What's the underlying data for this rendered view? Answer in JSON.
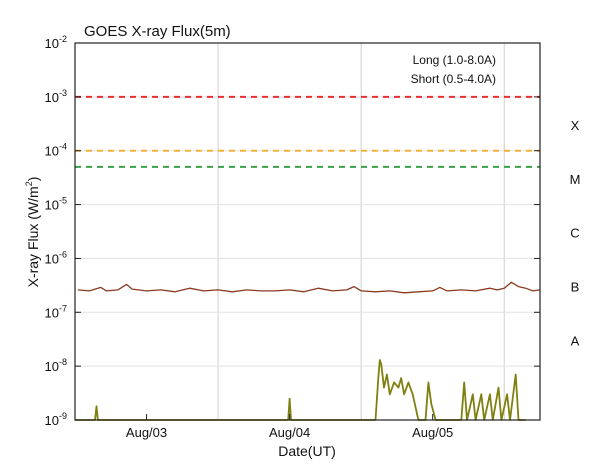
{
  "chart_data": {
    "type": "line",
    "title": "GOES X-ray Flux(5m)",
    "ylabel": "X-ray Flux (W/m",
    "ylabel_sup": "2",
    "ylabel_close": ")",
    "xlabel": "Date(UT)",
    "y_scale": "log",
    "ylim": [
      1e-09,
      0.01
    ],
    "y_ticks": [
      {
        "exp": -9,
        "base": "10",
        "sup": "-9"
      },
      {
        "exp": -8,
        "base": "10",
        "sup": "-8"
      },
      {
        "exp": -7,
        "base": "10",
        "sup": "-7"
      },
      {
        "exp": -6,
        "base": "10",
        "sup": "-6"
      },
      {
        "exp": -5,
        "base": "10",
        "sup": "-5"
      },
      {
        "exp": -4,
        "base": "10",
        "sup": "-4"
      },
      {
        "exp": -3,
        "base": "10",
        "sup": "-3"
      },
      {
        "exp": -2,
        "base": "10",
        "sup": "-2"
      }
    ],
    "xlim": [
      0,
      3.25
    ],
    "x_units": "days since Aug/02 00:00 UT",
    "x_ticks": [
      {
        "label": "Aug/03",
        "x": 0.5
      },
      {
        "label": "Aug/04",
        "x": 1.5
      },
      {
        "label": "Aug/05",
        "x": 2.5
      }
    ],
    "vertical_gridlines_x": [
      1.0,
      2.0,
      3.0
    ],
    "threshold_lines": [
      {
        "name": "X-class threshold",
        "value": 0.001,
        "color": "#e53030"
      },
      {
        "name": "M-class threshold",
        "value": 0.0001,
        "color": "#f2b23a"
      },
      {
        "name": "C-class threshold",
        "value": 5e-05,
        "color": "#3aa04a"
      }
    ],
    "flare_classes": [
      {
        "label": "X",
        "value": 0.0003
      },
      {
        "label": "M",
        "value": 3e-05
      },
      {
        "label": "C",
        "value": 3e-06
      },
      {
        "label": "B",
        "value": 3e-07
      },
      {
        "label": "A",
        "value": 3e-08
      }
    ],
    "legend": [
      {
        "label": "Long (1.0-8.0A)",
        "color": "#8b3a1f"
      },
      {
        "label": "Short (0.5-4.0A)",
        "color": "#808010"
      }
    ],
    "legend_position": "top-right",
    "series": [
      {
        "name": "Long (1.0-8.0A)",
        "color": "#8b3a1f",
        "points": [
          [
            0.02,
            2.6e-07
          ],
          [
            0.1,
            2.5e-07
          ],
          [
            0.18,
            2.9e-07
          ],
          [
            0.22,
            2.5e-07
          ],
          [
            0.3,
            2.6e-07
          ],
          [
            0.36,
            3.3e-07
          ],
          [
            0.4,
            2.7e-07
          ],
          [
            0.5,
            2.5e-07
          ],
          [
            0.6,
            2.6e-07
          ],
          [
            0.7,
            2.4e-07
          ],
          [
            0.8,
            2.8e-07
          ],
          [
            0.9,
            2.5e-07
          ],
          [
            1.0,
            2.6e-07
          ],
          [
            1.1,
            2.4e-07
          ],
          [
            1.2,
            2.6e-07
          ],
          [
            1.3,
            2.5e-07
          ],
          [
            1.4,
            2.5e-07
          ],
          [
            1.5,
            2.6e-07
          ],
          [
            1.6,
            2.4e-07
          ],
          [
            1.7,
            2.8e-07
          ],
          [
            1.8,
            2.5e-07
          ],
          [
            1.9,
            2.6e-07
          ],
          [
            1.95,
            3e-07
          ],
          [
            2.0,
            2.5e-07
          ],
          [
            2.1,
            2.4e-07
          ],
          [
            2.2,
            2.5e-07
          ],
          [
            2.3,
            2.3e-07
          ],
          [
            2.4,
            2.4e-07
          ],
          [
            2.5,
            2.5e-07
          ],
          [
            2.55,
            2.9e-07
          ],
          [
            2.6,
            2.5e-07
          ],
          [
            2.7,
            2.6e-07
          ],
          [
            2.8,
            2.5e-07
          ],
          [
            2.9,
            2.8e-07
          ],
          [
            2.95,
            2.6e-07
          ],
          [
            3.0,
            2.8e-07
          ],
          [
            3.05,
            3.6e-07
          ],
          [
            3.1,
            3e-07
          ],
          [
            3.15,
            2.8e-07
          ],
          [
            3.2,
            2.5e-07
          ],
          [
            3.25,
            2.6e-07
          ]
        ]
      },
      {
        "name": "Short (0.5-4.0A)",
        "color": "#808010",
        "points": [
          [
            0.0,
            1e-09
          ],
          [
            0.14,
            1e-09
          ],
          [
            0.15,
            1.8e-09
          ],
          [
            0.16,
            1e-09
          ],
          [
            1.45,
            1e-09
          ],
          [
            1.49,
            1e-09
          ],
          [
            1.5,
            2.5e-09
          ],
          [
            1.51,
            1e-09
          ],
          [
            2.1,
            1e-09
          ],
          [
            2.12,
            6e-09
          ],
          [
            2.13,
            1.3e-08
          ],
          [
            2.14,
            1.1e-08
          ],
          [
            2.16,
            4e-09
          ],
          [
            2.18,
            7e-09
          ],
          [
            2.2,
            3e-09
          ],
          [
            2.23,
            5e-09
          ],
          [
            2.26,
            4e-09
          ],
          [
            2.28,
            6e-09
          ],
          [
            2.3,
            3e-09
          ],
          [
            2.33,
            5e-09
          ],
          [
            2.36,
            3e-09
          ],
          [
            2.4,
            1e-09
          ],
          [
            2.45,
            1e-09
          ],
          [
            2.47,
            5e-09
          ],
          [
            2.49,
            2e-09
          ],
          [
            2.52,
            1e-09
          ],
          [
            2.7,
            1e-09
          ],
          [
            2.72,
            5e-09
          ],
          [
            2.74,
            1e-09
          ],
          [
            2.78,
            3e-09
          ],
          [
            2.8,
            1e-09
          ],
          [
            2.84,
            3e-09
          ],
          [
            2.86,
            1e-09
          ],
          [
            2.9,
            3e-09
          ],
          [
            2.92,
            1e-09
          ],
          [
            2.96,
            4e-09
          ],
          [
            2.98,
            1e-09
          ],
          [
            3.02,
            3e-09
          ],
          [
            3.04,
            1e-09
          ],
          [
            3.08,
            7e-09
          ],
          [
            3.1,
            1e-09
          ],
          [
            3.15,
            1e-09
          ]
        ]
      }
    ]
  }
}
